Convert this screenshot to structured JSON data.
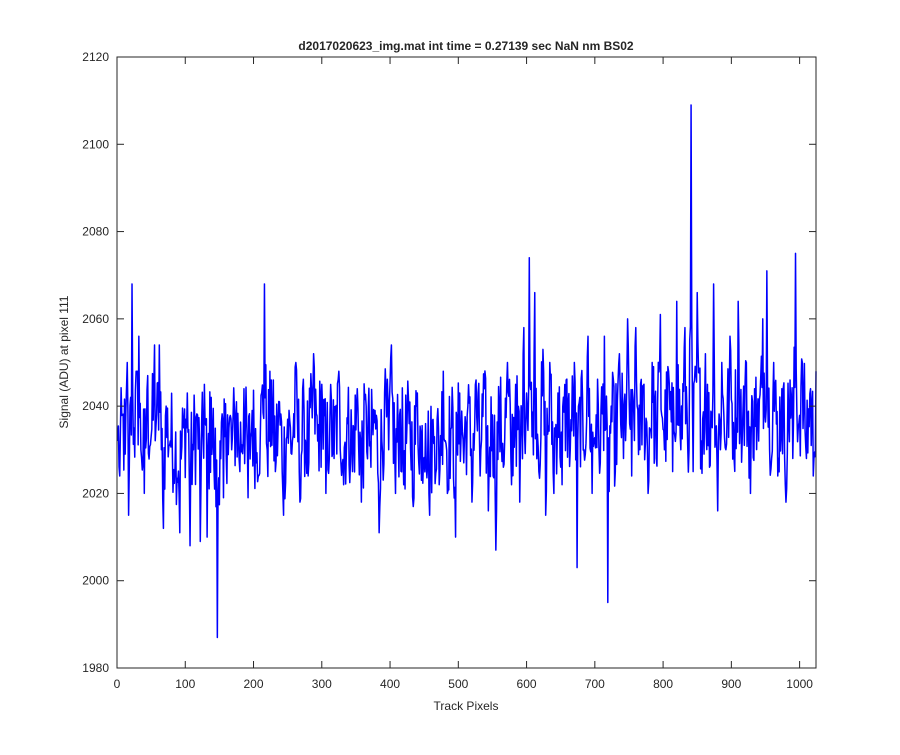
{
  "window": {
    "title": "d2017020623_img.mat int time = 0.27139 sec  NaN nm BS02"
  },
  "colors": {
    "line": "#0000ff",
    "axes": "#262626",
    "background": "#ffffff"
  },
  "chart_data": {
    "type": "line",
    "title": "d2017020623_img.mat int time = 0.27139 sec  NaN nm BS02",
    "xlabel": "Track Pixels",
    "ylabel": "Signal (ADU) at pixel 111",
    "xlim": [
      0,
      1024
    ],
    "ylim": [
      1980,
      2120
    ],
    "xticks": [
      0,
      100,
      200,
      300,
      400,
      500,
      600,
      700,
      800,
      900,
      1000
    ],
    "yticks": [
      1980,
      2000,
      2020,
      2040,
      2060,
      2080,
      2100,
      2120
    ],
    "grid": false,
    "series": [
      {
        "color": "#0000ff",
        "x_start": 1,
        "x_step": 1,
        "count": 1024,
        "sampled_points": [
          [
            1,
            2032
          ],
          [
            4,
            2024
          ],
          [
            8,
            2038
          ],
          [
            12,
            2029
          ],
          [
            15,
            2050
          ],
          [
            17,
            2015
          ],
          [
            20,
            2042
          ],
          [
            22,
            2068
          ],
          [
            25,
            2035
          ],
          [
            28,
            2048
          ],
          [
            32,
            2056
          ],
          [
            35,
            2030
          ],
          [
            40,
            2020
          ],
          [
            45,
            2047
          ],
          [
            50,
            2033
          ],
          [
            55,
            2054
          ],
          [
            58,
            2038
          ],
          [
            62,
            2054
          ],
          [
            65,
            2030
          ],
          [
            68,
            2012
          ],
          [
            72,
            2040
          ],
          [
            78,
            2032
          ],
          [
            85,
            2026
          ],
          [
            92,
            2011
          ],
          [
            98,
            2035
          ],
          [
            103,
            2043
          ],
          [
            107,
            2008
          ],
          [
            112,
            2030
          ],
          [
            118,
            2038
          ],
          [
            122,
            2009
          ],
          [
            128,
            2045
          ],
          [
            132,
            2010
          ],
          [
            138,
            2042
          ],
          [
            143,
            2021
          ],
          [
            147,
            1987
          ],
          [
            151,
            2032
          ],
          [
            156,
            2019
          ],
          [
            162,
            2038
          ],
          [
            168,
            2030
          ],
          [
            175,
            2041
          ],
          [
            180,
            2025
          ],
          [
            186,
            2044
          ],
          [
            192,
            2019
          ],
          [
            198,
            2039
          ],
          [
            204,
            2027
          ],
          [
            210,
            2034
          ],
          [
            216,
            2068
          ],
          [
            220,
            2030
          ],
          [
            226,
            2046
          ],
          [
            232,
            2025
          ],
          [
            238,
            2041
          ],
          [
            244,
            2015
          ],
          [
            250,
            2037
          ],
          [
            256,
            2029
          ],
          [
            262,
            2050
          ],
          [
            268,
            2018
          ],
          [
            274,
            2039
          ],
          [
            280,
            2024
          ],
          [
            288,
            2052
          ],
          [
            294,
            2032
          ],
          [
            300,
            2045
          ],
          [
            306,
            2020
          ],
          [
            312,
            2038
          ],
          [
            318,
            2028
          ],
          [
            325,
            2048
          ],
          [
            332,
            2022
          ],
          [
            338,
            2036
          ],
          [
            345,
            2025
          ],
          [
            352,
            2044
          ],
          [
            358,
            2018
          ],
          [
            365,
            2040
          ],
          [
            372,
            2026
          ],
          [
            378,
            2039
          ],
          [
            384,
            2011
          ],
          [
            392,
            2043
          ],
          [
            398,
            2030
          ],
          [
            402,
            2054
          ],
          [
            408,
            2020
          ],
          [
            414,
            2038
          ],
          [
            420,
            2022
          ],
          [
            428,
            2036
          ],
          [
            434,
            2017
          ],
          [
            440,
            2043
          ],
          [
            446,
            2023
          ],
          [
            452,
            2036
          ],
          [
            458,
            2015
          ],
          [
            465,
            2033
          ],
          [
            472,
            2022
          ],
          [
            478,
            2048
          ],
          [
            484,
            2020
          ],
          [
            490,
            2035
          ],
          [
            496,
            2010
          ],
          [
            502,
            2043
          ],
          [
            508,
            2027
          ],
          [
            514,
            2040
          ],
          [
            520,
            2018
          ],
          [
            526,
            2046
          ],
          [
            532,
            2024
          ],
          [
            538,
            2044
          ],
          [
            544,
            2016
          ],
          [
            550,
            2038
          ],
          [
            555,
            2007
          ],
          [
            560,
            2040
          ],
          [
            566,
            2026
          ],
          [
            572,
            2050
          ],
          [
            578,
            2022
          ],
          [
            584,
            2045
          ],
          [
            590,
            2018
          ],
          [
            596,
            2058
          ],
          [
            600,
            2043
          ],
          [
            604,
            2074
          ],
          [
            608,
            2033
          ],
          [
            612,
            2066
          ],
          [
            618,
            2025
          ],
          [
            624,
            2053
          ],
          [
            628,
            2015
          ],
          [
            634,
            2050
          ],
          [
            640,
            2020
          ],
          [
            646,
            2043
          ],
          [
            652,
            2022
          ],
          [
            658,
            2046
          ],
          [
            664,
            2030
          ],
          [
            670,
            2050
          ],
          [
            674,
            2003
          ],
          [
            678,
            2042
          ],
          [
            684,
            2030
          ],
          [
            690,
            2056
          ],
          [
            696,
            2020
          ],
          [
            702,
            2038
          ],
          [
            708,
            2027
          ],
          [
            714,
            2056
          ],
          [
            719,
            1995
          ],
          [
            724,
            2040
          ],
          [
            730,
            2025
          ],
          [
            736,
            2052
          ],
          [
            742,
            2028
          ],
          [
            748,
            2060
          ],
          [
            754,
            2024
          ],
          [
            760,
            2058
          ],
          [
            766,
            2030
          ],
          [
            772,
            2045
          ],
          [
            778,
            2020
          ],
          [
            784,
            2050
          ],
          [
            790,
            2028
          ],
          [
            796,
            2061
          ],
          [
            802,
            2030
          ],
          [
            808,
            2048
          ],
          [
            814,
            2025
          ],
          [
            820,
            2064
          ],
          [
            826,
            2030
          ],
          [
            832,
            2058
          ],
          [
            838,
            2030
          ],
          [
            841,
            2109
          ],
          [
            844,
            2025
          ],
          [
            850,
            2066
          ],
          [
            856,
            2032
          ],
          [
            862,
            2052
          ],
          [
            868,
            2026
          ],
          [
            874,
            2068
          ],
          [
            880,
            2016
          ],
          [
            886,
            2050
          ],
          [
            892,
            2030
          ],
          [
            898,
            2056
          ],
          [
            904,
            2028
          ],
          [
            910,
            2064
          ],
          [
            916,
            2033
          ],
          [
            922,
            2050
          ],
          [
            928,
            2020
          ],
          [
            934,
            2044
          ],
          [
            940,
            2032
          ],
          [
            946,
            2060
          ],
          [
            952,
            2071
          ],
          [
            956,
            2030
          ],
          [
            962,
            2050
          ],
          [
            968,
            2024
          ],
          [
            974,
            2044
          ],
          [
            980,
            2018
          ],
          [
            986,
            2046
          ],
          [
            990,
            2028
          ],
          [
            994,
            2075
          ],
          [
            998,
            2035
          ],
          [
            1004,
            2050
          ],
          [
            1010,
            2028
          ],
          [
            1016,
            2044
          ],
          [
            1020,
            2024
          ],
          [
            1024,
            2048
          ]
        ]
      }
    ]
  }
}
